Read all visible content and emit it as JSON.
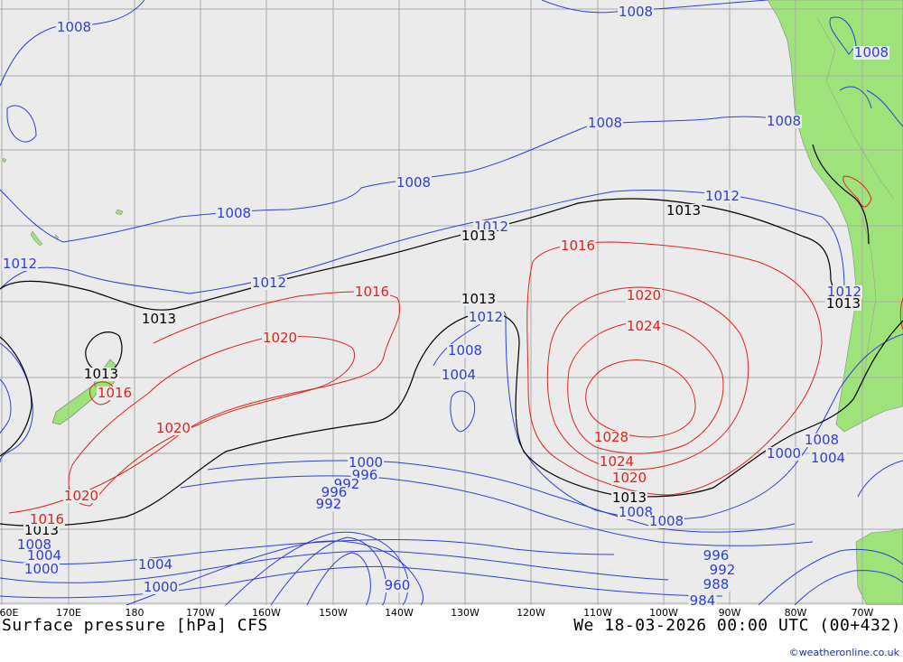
{
  "title": "Surface pressure [hPa] CFS",
  "valid_time": "We 18-03-2026 00:00 UTC (00+432)",
  "credit": "©weatheronline.co.uk",
  "colors": {
    "ocean": "#ebebeb",
    "land": "#9ee27a",
    "grid": "#a9a9a9",
    "low_isobar": "#2b3ee0",
    "high_isobar": "#e2231a",
    "reference_isobar": "#000000"
  },
  "longitude_labels": [
    "60E",
    "170E",
    "180",
    "170W",
    "160W",
    "150W",
    "140W",
    "130W",
    "120W",
    "110W",
    "100W",
    "90W",
    "80W",
    "70W"
  ],
  "isobar_labels": [
    {
      "text": "1008",
      "color": "low"
    },
    {
      "text": "1008",
      "color": "low"
    },
    {
      "text": "1008",
      "color": "low"
    },
    {
      "text": "1008",
      "color": "low"
    },
    {
      "text": "1008",
      "color": "low"
    },
    {
      "text": "1008",
      "color": "low"
    },
    {
      "text": "1008",
      "color": "low"
    },
    {
      "text": "1012",
      "color": "low"
    },
    {
      "text": "1012",
      "color": "low"
    },
    {
      "text": "1012",
      "color": "low"
    },
    {
      "text": "1012",
      "color": "low"
    },
    {
      "text": "1012",
      "color": "low"
    },
    {
      "text": "1012",
      "color": "low"
    },
    {
      "text": "1013",
      "color": "ref"
    },
    {
      "text": "1013",
      "color": "ref"
    },
    {
      "text": "1013",
      "color": "ref"
    },
    {
      "text": "1013",
      "color": "ref"
    },
    {
      "text": "1013",
      "color": "ref"
    },
    {
      "text": "1013",
      "color": "ref"
    },
    {
      "text": "1013",
      "color": "ref"
    },
    {
      "text": "1013",
      "color": "ref"
    },
    {
      "text": "1016",
      "color": "high"
    },
    {
      "text": "1016",
      "color": "high"
    },
    {
      "text": "1016",
      "color": "high"
    },
    {
      "text": "1016",
      "color": "high"
    },
    {
      "text": "1020",
      "color": "high"
    },
    {
      "text": "1020",
      "color": "high"
    },
    {
      "text": "1020",
      "color": "high"
    },
    {
      "text": "1020",
      "color": "high"
    },
    {
      "text": "1020",
      "color": "high"
    },
    {
      "text": "1024",
      "color": "high"
    },
    {
      "text": "1024",
      "color": "high"
    },
    {
      "text": "1028",
      "color": "high"
    },
    {
      "text": "1008",
      "color": "low"
    },
    {
      "text": "1004",
      "color": "low"
    },
    {
      "text": "1000",
      "color": "low"
    },
    {
      "text": "996",
      "color": "low"
    },
    {
      "text": "992",
      "color": "low"
    },
    {
      "text": "1008",
      "color": "low"
    },
    {
      "text": "1008",
      "color": "low"
    },
    {
      "text": "1004",
      "color": "low"
    },
    {
      "text": "1000",
      "color": "low"
    },
    {
      "text": "1008",
      "color": "low"
    },
    {
      "text": "1004",
      "color": "low"
    },
    {
      "text": "1000",
      "color": "low"
    },
    {
      "text": "996",
      "color": "low"
    },
    {
      "text": "992",
      "color": "low"
    },
    {
      "text": "988",
      "color": "low"
    },
    {
      "text": "984",
      "color": "low"
    },
    {
      "text": "960",
      "color": "low"
    },
    {
      "text": "1008",
      "color": "low"
    },
    {
      "text": "1004",
      "color": "low"
    },
    {
      "text": "1000",
      "color": "low"
    },
    {
      "text": "996",
      "color": "low"
    },
    {
      "text": "992",
      "color": "low"
    }
  ]
}
